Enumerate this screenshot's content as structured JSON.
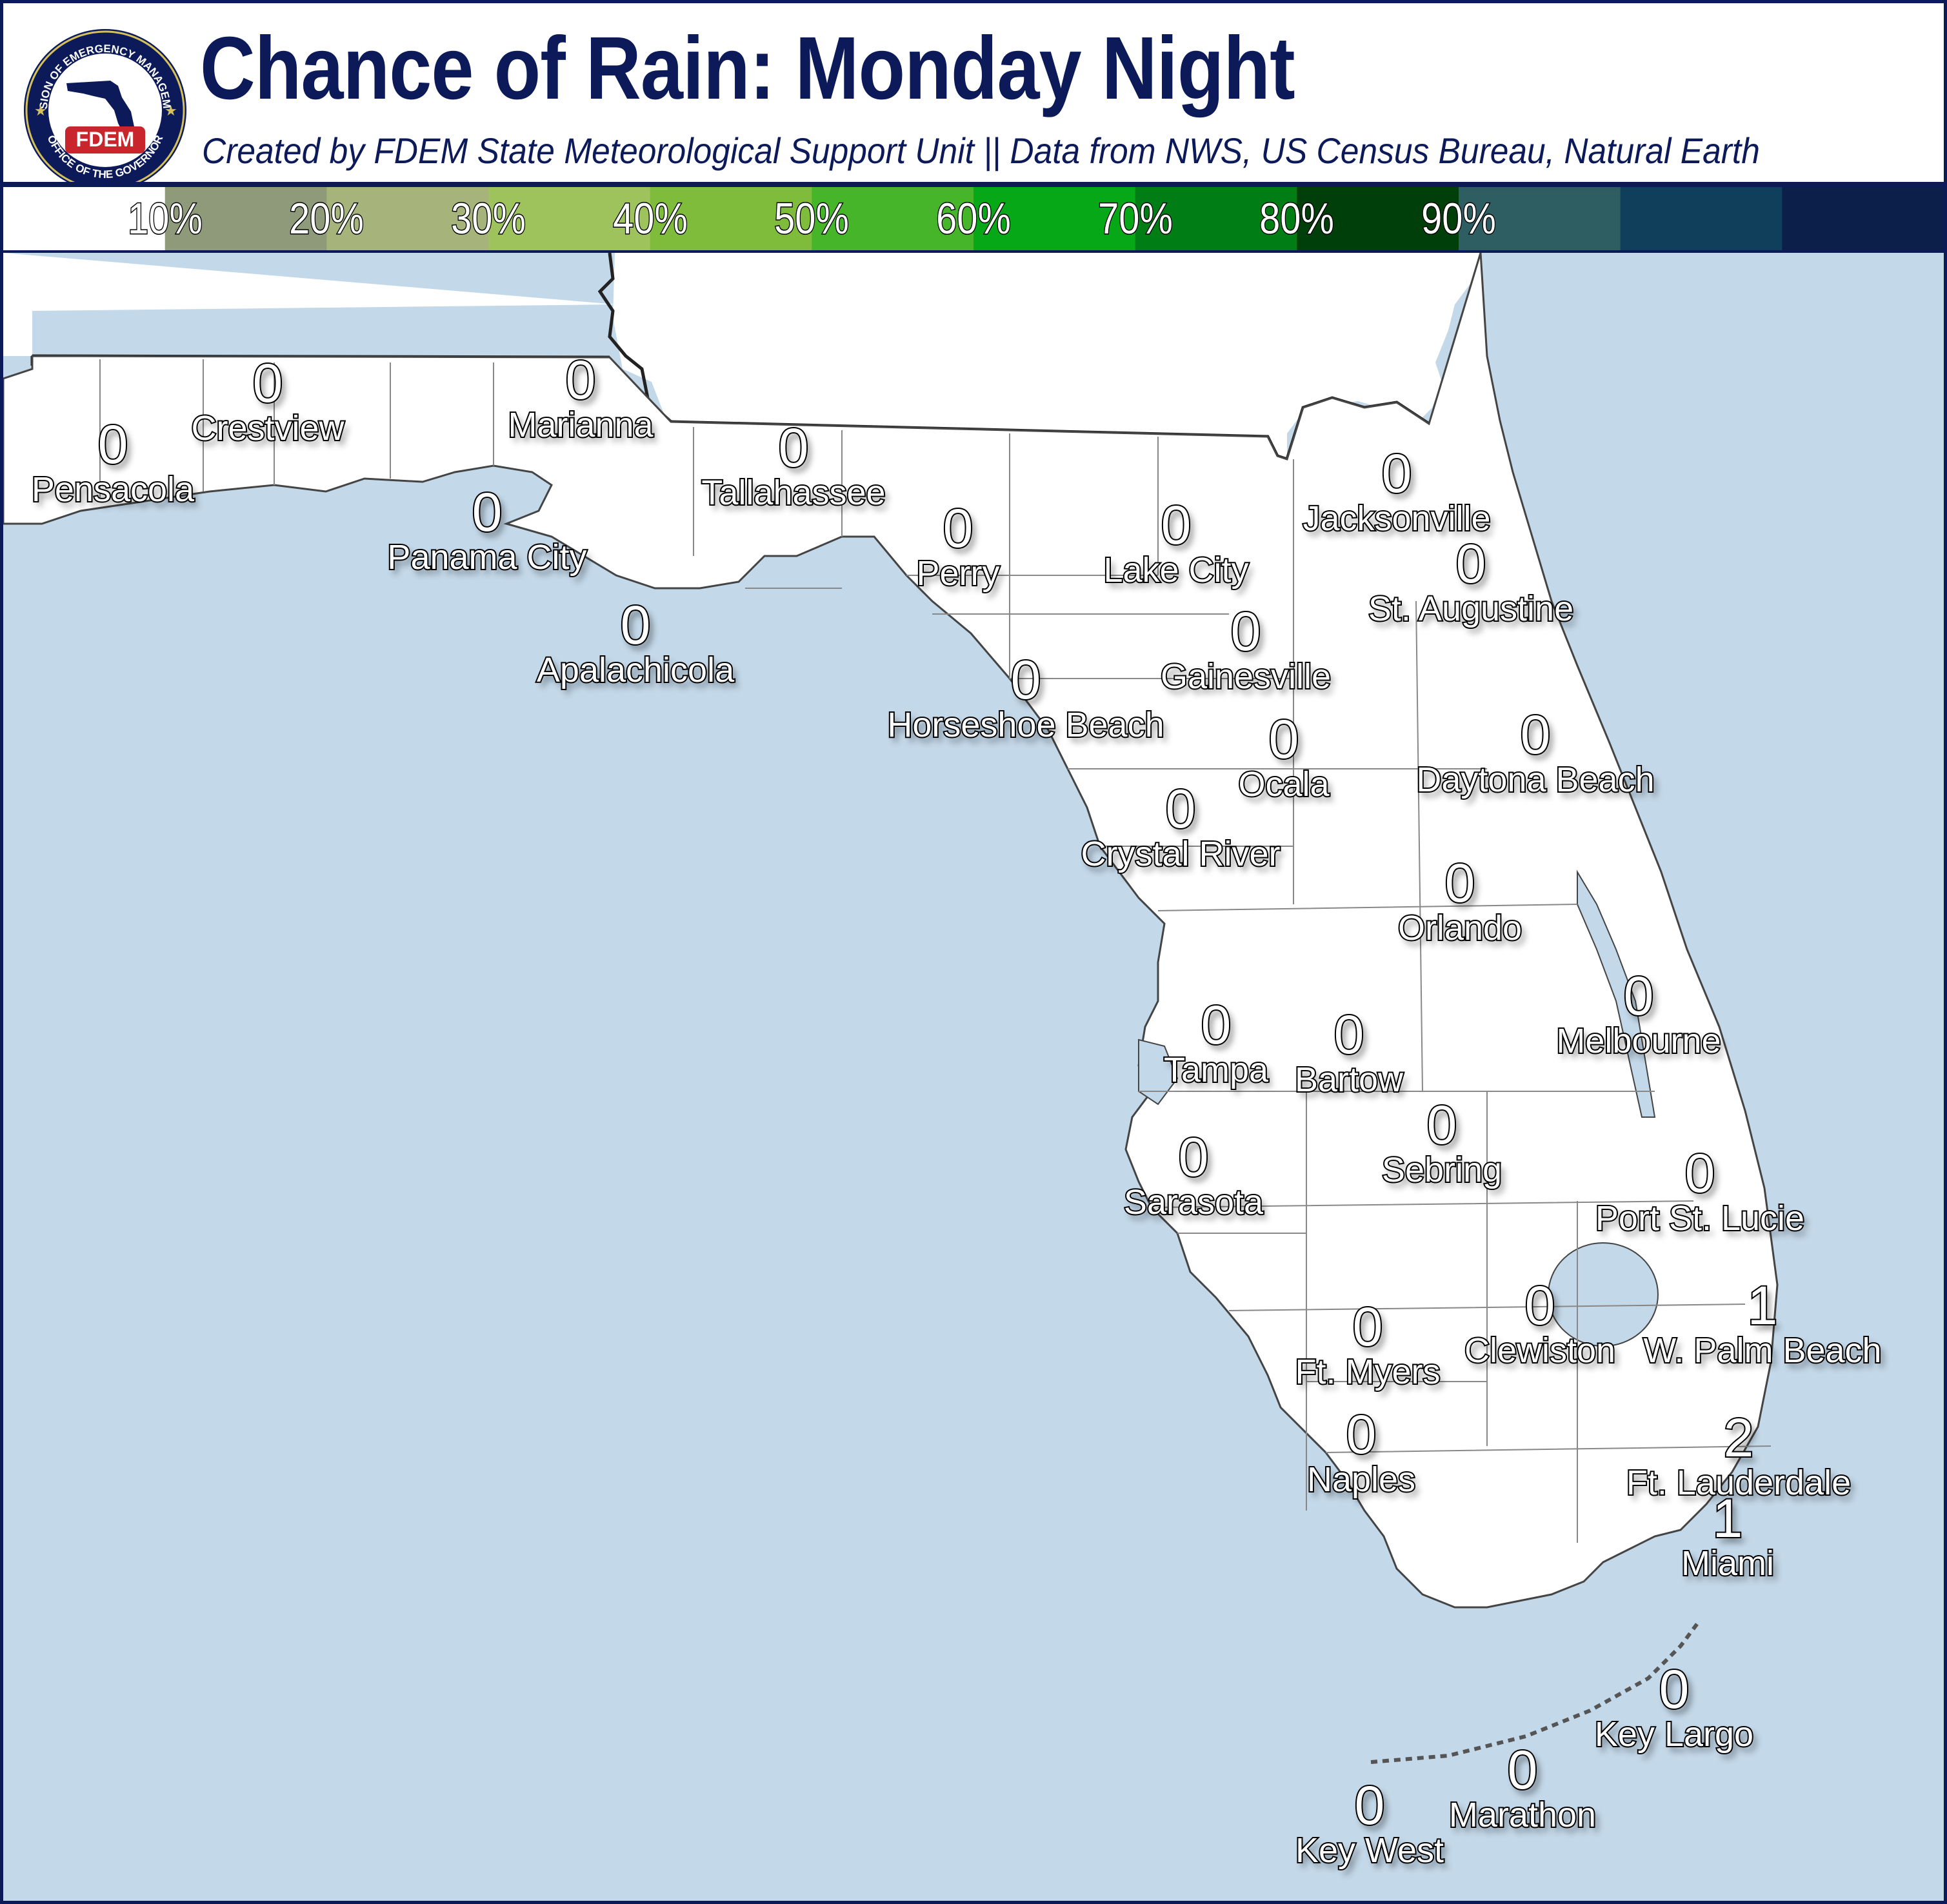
{
  "header": {
    "title": "Chance of Rain: Monday Night",
    "subtitle": "Created by FDEM State Meteorological Support Unit || Data from NWS, US Census Bureau, Natural Earth"
  },
  "logo": {
    "text_top": "DIVISION OF EMERGENCY MANAGEMENT",
    "text_bottom": "OFFICE OF THE GOVERNOR",
    "badge": "FDEM"
  },
  "legend": {
    "items": [
      {
        "label": "10%",
        "color": "#8e9a7a"
      },
      {
        "label": "20%",
        "color": "#a6b47c"
      },
      {
        "label": "30%",
        "color": "#9ec25c"
      },
      {
        "label": "40%",
        "color": "#7fbc3c"
      },
      {
        "label": "50%",
        "color": "#46b52a"
      },
      {
        "label": "60%",
        "color": "#07a818"
      },
      {
        "label": "70%",
        "color": "#007e15"
      },
      {
        "label": "80%",
        "color": "#0e3d12"
      },
      {
        "label": "90%",
        "color": "#184a5c"
      }
    ],
    "colors": [
      "#ffffff",
      "#8e9a7a",
      "#a6b47c",
      "#9ec25c",
      "#7fbc3c",
      "#46b52a",
      "#07a818",
      "#007e15",
      "#003f0a",
      "#2f5e62",
      "#0f3f5a",
      "#0b1f4a"
    ]
  },
  "colors": {
    "water": "#c3d8e9",
    "land": "#ffffff",
    "brand": "#0c1a5a"
  },
  "cities": [
    {
      "name": "Crestview",
      "value": "0"
    },
    {
      "name": "Marianna",
      "value": "0"
    },
    {
      "name": "Pensacola",
      "value": "0"
    },
    {
      "name": "Tallahassee",
      "value": "0"
    },
    {
      "name": "Panama City",
      "value": "0"
    },
    {
      "name": "Perry",
      "value": "0"
    },
    {
      "name": "Lake City",
      "value": "0"
    },
    {
      "name": "Jacksonville",
      "value": "0"
    },
    {
      "name": "Apalachicola",
      "value": "0"
    },
    {
      "name": "St. Augustine",
      "value": "0"
    },
    {
      "name": "Gainesville",
      "value": "0"
    },
    {
      "name": "Horseshoe Beach",
      "value": "0"
    },
    {
      "name": "Ocala",
      "value": "0"
    },
    {
      "name": "Daytona Beach",
      "value": "0"
    },
    {
      "name": "Crystal River",
      "value": "0"
    },
    {
      "name": "Orlando",
      "value": "0"
    },
    {
      "name": "Melbourne",
      "value": "0"
    },
    {
      "name": "Tampa",
      "value": "0"
    },
    {
      "name": "Bartow",
      "value": "0"
    },
    {
      "name": "Sebring",
      "value": "0"
    },
    {
      "name": "Sarasota",
      "value": "0"
    },
    {
      "name": "Port St. Lucie",
      "value": "0"
    },
    {
      "name": "Clewiston",
      "value": "0"
    },
    {
      "name": "W. Palm Beach",
      "value": "1"
    },
    {
      "name": "Ft. Myers",
      "value": "0"
    },
    {
      "name": "Naples",
      "value": "0"
    },
    {
      "name": "Ft. Lauderdale",
      "value": "2"
    },
    {
      "name": "Miami",
      "value": "1"
    },
    {
      "name": "Key Largo",
      "value": "0"
    },
    {
      "name": "Marathon",
      "value": "0"
    },
    {
      "name": "Key West",
      "value": "0"
    }
  ]
}
